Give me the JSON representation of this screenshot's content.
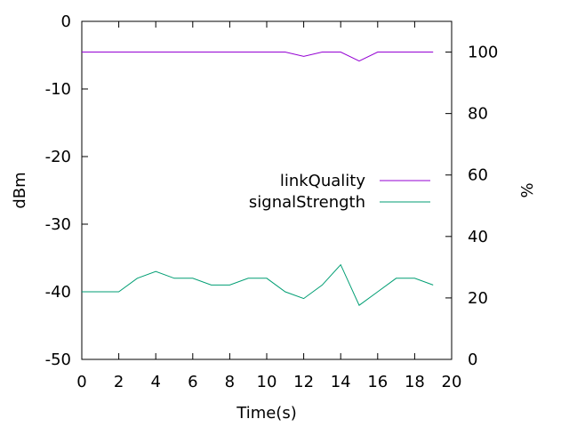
{
  "chart_data": {
    "type": "line",
    "title": "",
    "xlabel": "Time(s)",
    "ylabel": "dBm",
    "y2label": "%",
    "xlim": [
      0,
      20
    ],
    "ylim": [
      -50,
      0
    ],
    "y2lim": [
      0,
      110
    ],
    "x_ticks": [
      0,
      2,
      4,
      6,
      8,
      10,
      12,
      14,
      16,
      18,
      20
    ],
    "y_ticks": [
      -50,
      -40,
      -30,
      -20,
      -10,
      0
    ],
    "y2_ticks": [
      0,
      20,
      40,
      60,
      80,
      100
    ],
    "grid": false,
    "legend_position": "center-right",
    "series": [
      {
        "name": "linkQuality",
        "axis": "y2",
        "color": "#9400d3",
        "x": [
          0,
          1,
          2,
          3,
          4,
          5,
          6,
          7,
          8,
          9,
          10,
          11,
          12,
          13,
          14,
          15,
          16,
          17,
          18,
          19
        ],
        "values": [
          100,
          100,
          100,
          100,
          100,
          100,
          100,
          100,
          100,
          100,
          100,
          100,
          98.6,
          100,
          100,
          97.1,
          100,
          100,
          100,
          100
        ]
      },
      {
        "name": "signalStrength",
        "axis": "y",
        "color": "#009e73",
        "x": [
          0,
          1,
          2,
          3,
          4,
          5,
          6,
          7,
          8,
          9,
          10,
          11,
          12,
          13,
          14,
          15,
          16,
          17,
          18,
          19
        ],
        "values": [
          -40,
          -40,
          -40,
          -38,
          -37,
          -38,
          -38,
          -39,
          -39,
          -38,
          -38,
          -40,
          -41,
          -39,
          -36,
          -42,
          -40,
          -38,
          -38,
          -39
        ]
      }
    ]
  }
}
